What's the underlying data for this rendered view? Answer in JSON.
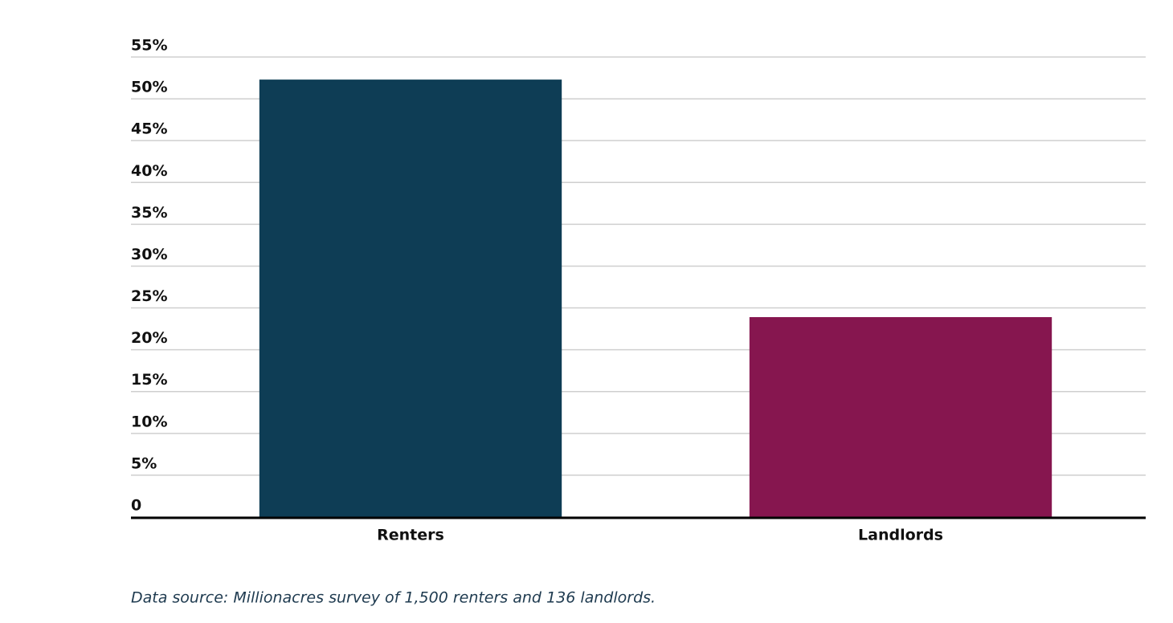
{
  "chart_data": {
    "type": "bar",
    "categories": [
      "Renters",
      "Landlords"
    ],
    "values": [
      52.3,
      23.9
    ],
    "colors": [
      "#0e3d55",
      "#86164f"
    ],
    "ylim": [
      0,
      55
    ],
    "yticks": [
      0,
      {
        "value": 5,
        "label": "5%"
      },
      {
        "value": 10,
        "label": "10%"
      },
      {
        "value": 15,
        "label": "15%"
      },
      {
        "value": 20,
        "label": "20%"
      },
      {
        "value": 25,
        "label": "25%"
      },
      {
        "value": 30,
        "label": "30%"
      },
      {
        "value": 35,
        "label": "35%"
      },
      {
        "value": 40,
        "label": "40%"
      },
      {
        "value": 45,
        "label": "45%"
      },
      {
        "value": 50,
        "label": "50%"
      },
      {
        "value": 55,
        "label": "55%"
      }
    ],
    "grid": true,
    "source": "Data source: Millionacres survey of 1,500 renters and 136 landlords."
  }
}
